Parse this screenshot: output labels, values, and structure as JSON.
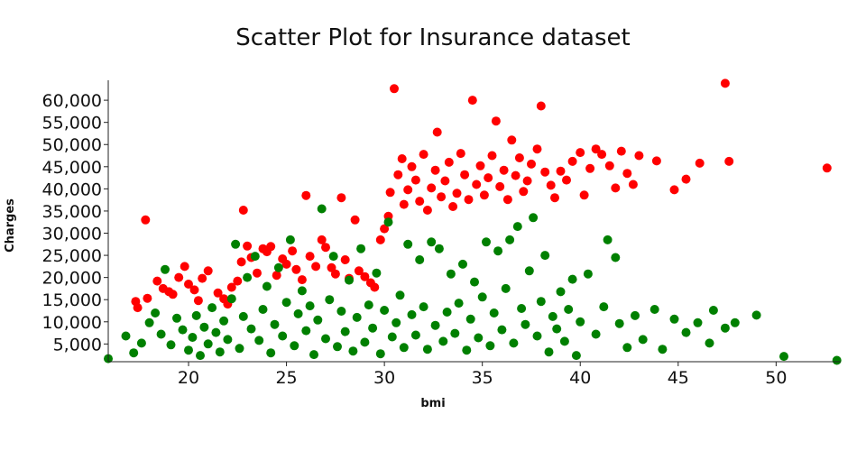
{
  "chart_data": {
    "type": "scatter",
    "title": "Scatter Plot for Insurance dataset",
    "xlabel": "bmi",
    "ylabel": "Charges",
    "xlim": [
      15.9,
      53.3
    ],
    "ylim": [
      1000,
      64500
    ],
    "x_ticks": [
      20,
      25,
      30,
      35,
      40,
      45,
      50
    ],
    "x_tick_labels": [
      "20",
      "25",
      "30",
      "35",
      "40",
      "45",
      "50"
    ],
    "y_ticks": [
      5000,
      10000,
      15000,
      20000,
      25000,
      30000,
      35000,
      40000,
      45000,
      50000,
      55000,
      60000
    ],
    "y_tick_labels": [
      "5,000",
      "10,000",
      "15,000",
      "20,000",
      "25,000",
      "30,000",
      "35,000",
      "40,000",
      "45,000",
      "50,000",
      "55,000",
      "60,000"
    ],
    "grid": false,
    "legend": "none",
    "colors": {
      "red": "#ff0000",
      "green": "#008000"
    },
    "series": [
      {
        "color": "red",
        "points": [
          [
            17.3,
            14600
          ],
          [
            17.4,
            13200
          ],
          [
            17.8,
            33000
          ],
          [
            17.9,
            15300
          ],
          [
            18.4,
            19200
          ],
          [
            18.7,
            17500
          ],
          [
            19.0,
            16800
          ],
          [
            19.2,
            16200
          ],
          [
            19.5,
            20000
          ],
          [
            19.8,
            22500
          ],
          [
            20.0,
            18500
          ],
          [
            20.3,
            17200
          ],
          [
            20.5,
            14800
          ],
          [
            20.7,
            19800
          ],
          [
            21.0,
            21500
          ],
          [
            21.5,
            16500
          ],
          [
            21.8,
            15200
          ],
          [
            22.0,
            14000
          ],
          [
            22.2,
            17800
          ],
          [
            22.5,
            19200
          ],
          [
            22.7,
            23500
          ],
          [
            22.8,
            35200
          ],
          [
            23.0,
            27100
          ],
          [
            23.2,
            24500
          ],
          [
            23.5,
            21000
          ],
          [
            23.8,
            26500
          ],
          [
            24.0,
            25800
          ],
          [
            24.2,
            27000
          ],
          [
            24.5,
            20500
          ],
          [
            24.8,
            24200
          ],
          [
            25.0,
            23000
          ],
          [
            25.3,
            26000
          ],
          [
            25.5,
            21800
          ],
          [
            25.8,
            19500
          ],
          [
            26.0,
            38500
          ],
          [
            26.2,
            24800
          ],
          [
            26.5,
            22500
          ],
          [
            26.8,
            28500
          ],
          [
            27.0,
            26800
          ],
          [
            27.3,
            22200
          ],
          [
            27.5,
            20800
          ],
          [
            27.8,
            38000
          ],
          [
            28.0,
            24000
          ],
          [
            28.2,
            19800
          ],
          [
            28.5,
            33000
          ],
          [
            28.7,
            21500
          ],
          [
            29.0,
            20200
          ],
          [
            29.3,
            18800
          ],
          [
            29.5,
            17800
          ],
          [
            29.8,
            28500
          ],
          [
            30.0,
            31000
          ],
          [
            30.2,
            33800
          ],
          [
            30.3,
            39200
          ],
          [
            30.5,
            62600
          ],
          [
            30.7,
            43200
          ],
          [
            30.9,
            46800
          ],
          [
            31.0,
            36500
          ],
          [
            31.2,
            39800
          ],
          [
            31.4,
            45000
          ],
          [
            31.6,
            42000
          ],
          [
            31.8,
            37200
          ],
          [
            32.0,
            47800
          ],
          [
            32.2,
            35200
          ],
          [
            32.4,
            40200
          ],
          [
            32.6,
            44200
          ],
          [
            32.7,
            52800
          ],
          [
            32.9,
            38200
          ],
          [
            33.1,
            41800
          ],
          [
            33.3,
            46000
          ],
          [
            33.5,
            36000
          ],
          [
            33.7,
            39000
          ],
          [
            33.9,
            48000
          ],
          [
            34.1,
            43200
          ],
          [
            34.3,
            37600
          ],
          [
            34.5,
            60000
          ],
          [
            34.7,
            41000
          ],
          [
            34.9,
            45200
          ],
          [
            35.1,
            38600
          ],
          [
            35.3,
            42500
          ],
          [
            35.5,
            47500
          ],
          [
            35.7,
            55300
          ],
          [
            35.9,
            40500
          ],
          [
            36.1,
            44200
          ],
          [
            36.3,
            37600
          ],
          [
            36.5,
            51000
          ],
          [
            36.7,
            43000
          ],
          [
            36.9,
            47000
          ],
          [
            37.1,
            39400
          ],
          [
            37.3,
            41800
          ],
          [
            37.5,
            45600
          ],
          [
            37.8,
            49000
          ],
          [
            38.0,
            58700
          ],
          [
            38.2,
            43800
          ],
          [
            38.5,
            40800
          ],
          [
            38.7,
            38000
          ],
          [
            39.0,
            44000
          ],
          [
            39.3,
            42000
          ],
          [
            39.6,
            46200
          ],
          [
            40.0,
            48200
          ],
          [
            40.2,
            38600
          ],
          [
            40.5,
            44600
          ],
          [
            40.8,
            49000
          ],
          [
            41.1,
            47800
          ],
          [
            41.5,
            45200
          ],
          [
            41.8,
            40200
          ],
          [
            42.1,
            48500
          ],
          [
            42.4,
            43500
          ],
          [
            42.7,
            41000
          ],
          [
            43.0,
            47500
          ],
          [
            43.9,
            46300
          ],
          [
            44.8,
            39800
          ],
          [
            45.4,
            42200
          ],
          [
            46.1,
            45800
          ],
          [
            47.4,
            63800
          ],
          [
            47.6,
            46200
          ],
          [
            52.6,
            44700
          ]
        ]
      },
      {
        "color": "green",
        "points": [
          [
            15.9,
            1700
          ],
          [
            16.8,
            6800
          ],
          [
            17.2,
            3000
          ],
          [
            17.6,
            5200
          ],
          [
            18.0,
            9800
          ],
          [
            18.3,
            12000
          ],
          [
            18.6,
            7200
          ],
          [
            18.8,
            21800
          ],
          [
            19.1,
            4800
          ],
          [
            19.4,
            10800
          ],
          [
            19.7,
            8200
          ],
          [
            20.0,
            3600
          ],
          [
            20.2,
            6500
          ],
          [
            20.4,
            11400
          ],
          [
            20.6,
            2400
          ],
          [
            20.8,
            8800
          ],
          [
            21.0,
            5000
          ],
          [
            21.2,
            13200
          ],
          [
            21.4,
            7600
          ],
          [
            21.6,
            3200
          ],
          [
            21.8,
            10200
          ],
          [
            22.0,
            6000
          ],
          [
            22.2,
            15200
          ],
          [
            22.4,
            27500
          ],
          [
            22.6,
            4000
          ],
          [
            22.8,
            11200
          ],
          [
            23.0,
            20000
          ],
          [
            23.2,
            8400
          ],
          [
            23.4,
            24800
          ],
          [
            23.6,
            5800
          ],
          [
            23.8,
            12800
          ],
          [
            24.0,
            18000
          ],
          [
            24.2,
            3000
          ],
          [
            24.4,
            9400
          ],
          [
            24.6,
            22200
          ],
          [
            24.8,
            6800
          ],
          [
            25.0,
            14400
          ],
          [
            25.2,
            28500
          ],
          [
            25.4,
            4600
          ],
          [
            25.6,
            11800
          ],
          [
            25.8,
            17000
          ],
          [
            26.0,
            8000
          ],
          [
            26.2,
            13600
          ],
          [
            26.4,
            2600
          ],
          [
            26.6,
            10400
          ],
          [
            26.8,
            35500
          ],
          [
            27.0,
            6200
          ],
          [
            27.2,
            15000
          ],
          [
            27.4,
            24800
          ],
          [
            27.6,
            4400
          ],
          [
            27.8,
            12400
          ],
          [
            28.0,
            7800
          ],
          [
            28.2,
            19400
          ],
          [
            28.4,
            3400
          ],
          [
            28.6,
            11000
          ],
          [
            28.8,
            26500
          ],
          [
            29.0,
            5400
          ],
          [
            29.2,
            13800
          ],
          [
            29.4,
            8600
          ],
          [
            29.6,
            21000
          ],
          [
            29.8,
            2800
          ],
          [
            30.0,
            12600
          ],
          [
            30.2,
            32500
          ],
          [
            30.4,
            6600
          ],
          [
            30.6,
            9800
          ],
          [
            30.8,
            16000
          ],
          [
            31.0,
            4200
          ],
          [
            31.2,
            27500
          ],
          [
            31.4,
            11600
          ],
          [
            31.6,
            7000
          ],
          [
            31.8,
            24000
          ],
          [
            32.0,
            13400
          ],
          [
            32.2,
            3800
          ],
          [
            32.4,
            28000
          ],
          [
            32.6,
            9200
          ],
          [
            32.8,
            26500
          ],
          [
            33.0,
            5600
          ],
          [
            33.2,
            12200
          ],
          [
            33.4,
            20800
          ],
          [
            33.6,
            7400
          ],
          [
            33.8,
            14200
          ],
          [
            34.0,
            23000
          ],
          [
            34.2,
            3600
          ],
          [
            34.4,
            10600
          ],
          [
            34.6,
            19000
          ],
          [
            34.8,
            6400
          ],
          [
            35.0,
            15600
          ],
          [
            35.2,
            28000
          ],
          [
            35.4,
            4600
          ],
          [
            35.6,
            12000
          ],
          [
            35.8,
            26000
          ],
          [
            36.0,
            8200
          ],
          [
            36.2,
            17500
          ],
          [
            36.4,
            28500
          ],
          [
            36.6,
            5200
          ],
          [
            36.8,
            31500
          ],
          [
            37.0,
            13000
          ],
          [
            37.2,
            9400
          ],
          [
            37.4,
            21500
          ],
          [
            37.6,
            33500
          ],
          [
            37.8,
            6800
          ],
          [
            38.0,
            14600
          ],
          [
            38.2,
            25000
          ],
          [
            38.4,
            3200
          ],
          [
            38.6,
            11200
          ],
          [
            38.8,
            8400
          ],
          [
            39.0,
            16800
          ],
          [
            39.2,
            5600
          ],
          [
            39.4,
            12800
          ],
          [
            39.6,
            19600
          ],
          [
            39.8,
            2400
          ],
          [
            40.0,
            10000
          ],
          [
            40.4,
            20800
          ],
          [
            40.8,
            7200
          ],
          [
            41.2,
            13400
          ],
          [
            41.4,
            28500
          ],
          [
            41.8,
            24500
          ],
          [
            42.0,
            9600
          ],
          [
            42.4,
            4200
          ],
          [
            42.8,
            11400
          ],
          [
            43.2,
            6000
          ],
          [
            43.8,
            12800
          ],
          [
            44.2,
            3800
          ],
          [
            44.8,
            10600
          ],
          [
            45.4,
            7600
          ],
          [
            46.0,
            9800
          ],
          [
            46.6,
            5200
          ],
          [
            46.8,
            12600
          ],
          [
            47.4,
            8600
          ],
          [
            47.9,
            9800
          ],
          [
            49.0,
            11500
          ],
          [
            50.4,
            2200
          ],
          [
            53.1,
            1300
          ]
        ]
      }
    ]
  }
}
